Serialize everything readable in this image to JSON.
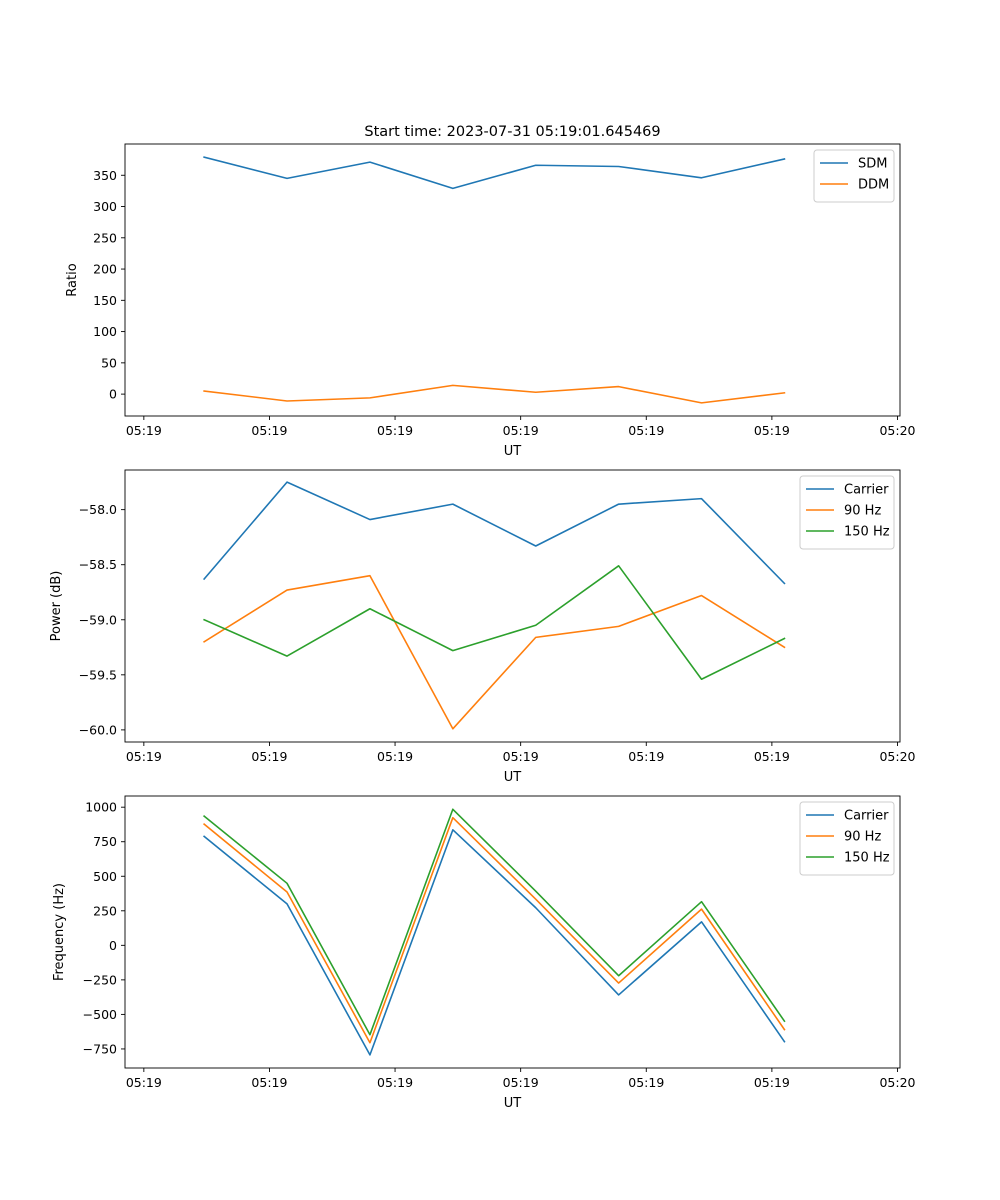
{
  "figure_title": "Start time: 2023-07-31 05:19:01.645469",
  "colors": {
    "blue": "#1f77b4",
    "orange": "#ff7f0e",
    "green": "#2ca02c"
  },
  "chart_data": [
    {
      "type": "line",
      "title": "Start time: 2023-07-31 05:19:01.645469",
      "xlabel": "UT",
      "ylabel": "Ratio",
      "x_ticks": [
        "05:19",
        "05:19",
        "05:19",
        "05:19",
        "05:19",
        "05:19",
        "05:20"
      ],
      "x_tick_values": [
        0,
        5,
        10,
        15,
        20,
        25,
        30
      ],
      "xlim": [
        -0.75,
        30.1
      ],
      "ylim": [
        -35,
        400
      ],
      "y_ticks": [
        0,
        50,
        100,
        150,
        200,
        250,
        300,
        350
      ],
      "y_tick_labels": [
        "0",
        "50",
        "100",
        "150",
        "200",
        "250",
        "300",
        "350"
      ],
      "x": [
        2.4,
        5.7,
        9.0,
        12.3,
        15.6,
        18.9,
        22.2,
        25.5
      ],
      "legend_position": "top-right",
      "series": [
        {
          "name": "SDM",
          "color": "#1f77b4",
          "values": [
            379,
            345,
            371,
            329,
            366,
            364,
            346,
            376
          ]
        },
        {
          "name": "DDM",
          "color": "#ff7f0e",
          "values": [
            5,
            -11,
            -6,
            14,
            3,
            12,
            -14,
            2
          ]
        }
      ]
    },
    {
      "type": "line",
      "title": "",
      "xlabel": "UT",
      "ylabel": "Power (dB)",
      "x_ticks": [
        "05:19",
        "05:19",
        "05:19",
        "05:19",
        "05:19",
        "05:19",
        "05:20"
      ],
      "x_tick_values": [
        0,
        5,
        10,
        15,
        20,
        25,
        30
      ],
      "xlim": [
        -0.75,
        30.1
      ],
      "ylim": [
        -60.11,
        -57.64
      ],
      "y_ticks": [
        -60.0,
        -59.5,
        -59.0,
        -58.5,
        -58.0
      ],
      "y_tick_labels": [
        "−60.0",
        "−59.5",
        "−59.0",
        "−58.5",
        "−58.0"
      ],
      "x": [
        2.4,
        5.7,
        9.0,
        12.3,
        15.6,
        18.9,
        22.2,
        25.5
      ],
      "legend_position": "top-right",
      "series": [
        {
          "name": "Carrier",
          "color": "#1f77b4",
          "values": [
            -58.63,
            -57.75,
            -58.09,
            -57.95,
            -58.33,
            -57.95,
            -57.9,
            -58.67
          ]
        },
        {
          "name": "90 Hz",
          "color": "#ff7f0e",
          "values": [
            -59.2,
            -58.73,
            -58.6,
            -59.99,
            -59.16,
            -59.06,
            -58.78,
            -59.25
          ]
        },
        {
          "name": "150 Hz",
          "color": "#2ca02c",
          "values": [
            -59.0,
            -59.33,
            -58.9,
            -59.28,
            -59.05,
            -58.51,
            -59.54,
            -59.17
          ]
        }
      ]
    },
    {
      "type": "line",
      "title": "",
      "xlabel": "UT",
      "ylabel": "Frequency (Hz)",
      "x_ticks": [
        "05:19",
        "05:19",
        "05:19",
        "05:19",
        "05:19",
        "05:19",
        "05:20"
      ],
      "x_tick_values": [
        0,
        5,
        10,
        15,
        20,
        25,
        30
      ],
      "xlim": [
        -0.75,
        30.1
      ],
      "ylim": [
        -888,
        1081
      ],
      "y_ticks": [
        -750,
        -500,
        -250,
        0,
        250,
        500,
        750,
        1000
      ],
      "y_tick_labels": [
        "−750",
        "−500",
        "−250",
        "0",
        "250",
        "500",
        "750",
        "1000"
      ],
      "x": [
        2.4,
        5.7,
        9.0,
        12.3,
        15.6,
        18.9,
        22.2,
        25.5
      ],
      "legend_position": "top-right",
      "series": [
        {
          "name": "Carrier",
          "color": "#1f77b4",
          "values": [
            789,
            300,
            -793,
            836,
            272,
            -359,
            170,
            -697
          ]
        },
        {
          "name": "90 Hz",
          "color": "#ff7f0e",
          "values": [
            877,
            386,
            -705,
            924,
            334,
            -273,
            262,
            -610
          ]
        },
        {
          "name": "150 Hz",
          "color": "#2ca02c",
          "values": [
            935,
            449,
            -647,
            985,
            392,
            -220,
            316,
            -549
          ]
        }
      ]
    }
  ]
}
